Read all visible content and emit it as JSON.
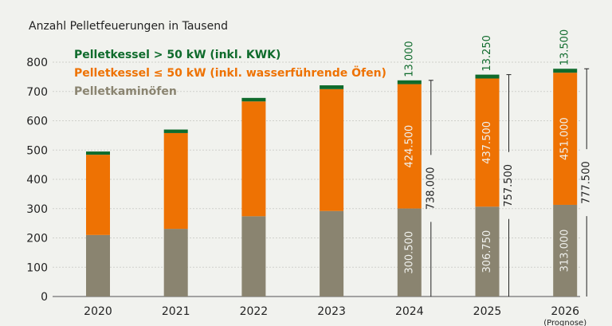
{
  "chart_data": {
    "type": "bar",
    "stacked": true,
    "title": "Anzahl Pelletfeuerungen in Tausend",
    "categories": [
      "2020",
      "2021",
      "2022",
      "2023",
      "2024",
      "2025",
      "2026"
    ],
    "category_notes": {
      "2026": "(Prognose)"
    },
    "ylim": [
      0,
      800
    ],
    "yticks": [
      0,
      100,
      200,
      300,
      400,
      500,
      600,
      700,
      800
    ],
    "grid": true,
    "legend_position": "top-left",
    "series": [
      {
        "name": "Pelletkaminöfen",
        "color": "#8a8470",
        "values": [
          210,
          231,
          274,
          292,
          300.5,
          306.75,
          313.0
        ],
        "labels": [
          "",
          "",
          "",
          "",
          "300.500",
          "306.750",
          "313.000"
        ]
      },
      {
        "name": "Pelletkessel ≤ 50 kW (inkl. wasserführende Öfen)",
        "color": "#ee7203",
        "values": [
          274,
          327,
          392,
          416,
          424.5,
          437.5,
          451.0
        ],
        "labels": [
          "",
          "",
          "",
          "",
          "424.500",
          "437.500",
          "451.000"
        ]
      },
      {
        "name": "Pelletkessel > 50 kW (inkl. KWK)",
        "color": "#0f6b2c",
        "values": [
          11,
          12,
          12,
          13,
          13.0,
          13.25,
          13.5
        ],
        "labels": [
          "",
          "",
          "",
          "",
          "13.000",
          "13.250",
          "13.500"
        ]
      }
    ],
    "totals": [
      "",
      "",
      "",
      "",
      "738.000",
      "757.500",
      "777.500"
    ]
  }
}
